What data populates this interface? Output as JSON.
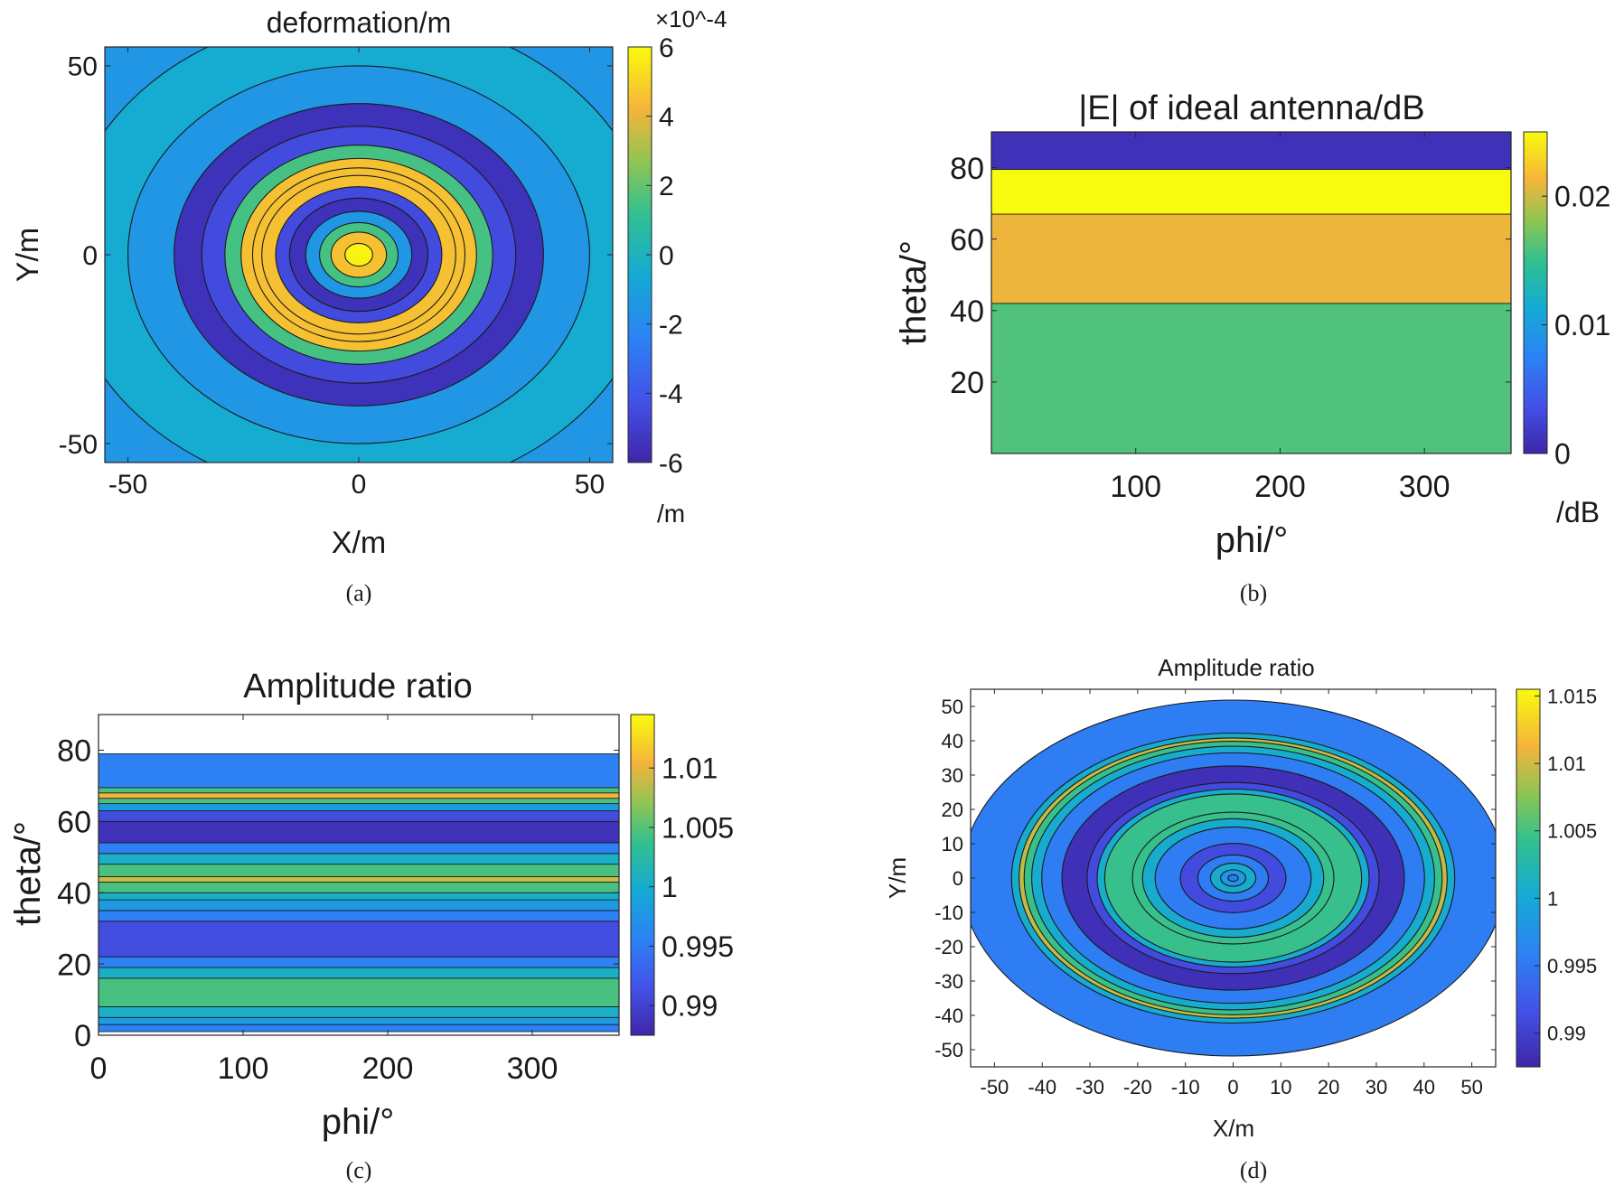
{
  "chart_data": [
    {
      "type": "heatmap",
      "subtype": "filled-contour",
      "panel": "(a)",
      "title": "deformation/m",
      "xlabel": "X/m",
      "ylabel": "Y/m",
      "xlim": [
        -55,
        55
      ],
      "ylim": [
        -55,
        55
      ],
      "xticks": [
        "-50",
        "0",
        "50"
      ],
      "yticks": [
        "50",
        "0",
        "-50"
      ],
      "colorbar": {
        "range": [
          -6,
          6
        ],
        "ticks": [
          "6",
          "4",
          "2",
          "0",
          "-2",
          "-4",
          "-6"
        ],
        "exponent": "×10^-4",
        "unit": "/m"
      },
      "rings": [
        {
          "radius": 80,
          "level": -1.5
        },
        {
          "radius": 64,
          "level": -0.5
        },
        {
          "radius": 50,
          "level": -1.5
        },
        {
          "radius": 40,
          "level": -5.5
        },
        {
          "radius": 34,
          "level": -4.5
        },
        {
          "radius": 29,
          "level": 1.5
        },
        {
          "radius": 25.5,
          "level": 4.5
        },
        {
          "radius": 23,
          "level": 4.5
        },
        {
          "radius": 21,
          "level": 4.5
        },
        {
          "radius": 18,
          "level": -4.5
        },
        {
          "radius": 15,
          "level": -5.5
        },
        {
          "radius": 11.5,
          "level": -1.5
        },
        {
          "radius": 8.5,
          "level": 1.5
        },
        {
          "radius": 6,
          "level": 4.5
        },
        {
          "radius": 3,
          "level": 5.8
        }
      ]
    },
    {
      "type": "heatmap",
      "subtype": "filled-contour",
      "panel": "(b)",
      "title": "|E| of ideal antenna/dB",
      "xlabel": "phi/°",
      "ylabel": "theta/°",
      "xlim": [
        0,
        360
      ],
      "ylim": [
        0,
        90
      ],
      "xticks": [
        "100",
        "200",
        "300"
      ],
      "yticks": [
        "80",
        "60",
        "40",
        "20"
      ],
      "colorbar": {
        "range": [
          0,
          0.025
        ],
        "ticks": [
          "0.02",
          "0.01",
          "0"
        ],
        "unit": "/dB"
      },
      "bands": [
        {
          "from": 0,
          "to": 42,
          "level": 0.016
        },
        {
          "from": 42,
          "to": 67,
          "level": 0.021
        },
        {
          "from": 67,
          "to": 79.5,
          "level": 0.025
        },
        {
          "from": 79.5,
          "to": 90,
          "level": 0.001
        }
      ]
    },
    {
      "type": "heatmap",
      "subtype": "filled-contour",
      "panel": "(c)",
      "title": "Amplitude ratio",
      "xlabel": "phi/°",
      "ylabel": "theta/°",
      "xlim": [
        0,
        360
      ],
      "ylim": [
        0,
        90
      ],
      "xticks": [
        "0",
        "100",
        "200",
        "300"
      ],
      "yticks": [
        "80",
        "60",
        "40",
        "20",
        "0"
      ],
      "colorbar": {
        "range": [
          0.9875,
          1.0145
        ],
        "ticks": [
          "1.01",
          "1.005",
          "1",
          "0.995",
          "0.99"
        ]
      },
      "bands": [
        {
          "from": 1,
          "to": 3,
          "level": 0.9955
        },
        {
          "from": 3,
          "to": 5,
          "level": 0.998
        },
        {
          "from": 5,
          "to": 8,
          "level": 1.0005
        },
        {
          "from": 8,
          "to": 16,
          "level": 1.0045
        },
        {
          "from": 16,
          "to": 19,
          "level": 1.0005
        },
        {
          "from": 19,
          "to": 22,
          "level": 0.9955
        },
        {
          "from": 22,
          "to": 32,
          "level": 0.991
        },
        {
          "from": 32,
          "to": 35,
          "level": 0.9955
        },
        {
          "from": 35,
          "to": 38,
          "level": 0.998
        },
        {
          "from": 38,
          "to": 40,
          "level": 1.0005
        },
        {
          "from": 40,
          "to": 43,
          "level": 1.0045
        },
        {
          "from": 43,
          "to": 44.5,
          "level": 1.009
        },
        {
          "from": 44.5,
          "to": 48,
          "level": 1.0045
        },
        {
          "from": 48,
          "to": 51,
          "level": 1.0005
        },
        {
          "from": 51,
          "to": 54,
          "level": 0.9955
        },
        {
          "from": 54,
          "to": 60,
          "level": 0.9885
        },
        {
          "from": 60,
          "to": 63,
          "level": 0.991
        },
        {
          "from": 63,
          "to": 65,
          "level": 0.998
        },
        {
          "from": 65,
          "to": 66.5,
          "level": 1.0045
        },
        {
          "from": 66.5,
          "to": 68,
          "level": 1.0105
        },
        {
          "from": 68,
          "to": 69.5,
          "level": 1.0045
        },
        {
          "from": 69.5,
          "to": 79,
          "level": 0.9955
        }
      ]
    },
    {
      "type": "heatmap",
      "subtype": "filled-contour",
      "panel": "(d)",
      "title": "Amplitude ratio",
      "xlabel": "X/m",
      "ylabel": "Y/m",
      "xlim": [
        -55,
        55
      ],
      "ylim": [
        -55,
        55
      ],
      "xticks": [
        "-50",
        "-40",
        "-30",
        "-20",
        "-10",
        "0",
        "10",
        "20",
        "30",
        "40",
        "50"
      ],
      "yticks": [
        "50",
        "40",
        "30",
        "20",
        "10",
        "0",
        "-10",
        "-20",
        "-30",
        "-40",
        "-50"
      ],
      "colorbar": {
        "range": [
          0.9875,
          1.0155
        ],
        "ticks": [
          "1.015",
          "1.01",
          "1.005",
          "1",
          "0.995",
          "0.99"
        ]
      },
      "rings": [
        {
          "radius": 54,
          "level": 0.9955
        },
        {
          "radius": 44,
          "level": 1.0005
        },
        {
          "radius": 42.5,
          "level": 1.0095
        },
        {
          "radius": 41.5,
          "level": 1.0045
        },
        {
          "radius": 40,
          "level": 1.0005
        },
        {
          "radius": 38,
          "level": 0.9955
        },
        {
          "radius": 34,
          "level": 0.9885
        },
        {
          "radius": 29,
          "level": 0.991
        },
        {
          "radius": 27,
          "level": 1.0005
        },
        {
          "radius": 25.5,
          "level": 1.0045
        },
        {
          "radius": 20,
          "level": 1.0045
        },
        {
          "radius": 18,
          "level": 1.0005
        },
        {
          "radius": 15.5,
          "level": 0.9955
        },
        {
          "radius": 10.5,
          "level": 0.991
        },
        {
          "radius": 7,
          "level": 0.9955
        },
        {
          "radius": 4.5,
          "level": 1.0005
        },
        {
          "radius": 2.5,
          "level": 0.998
        },
        {
          "radius": 1,
          "level": 0.9955
        }
      ]
    }
  ],
  "captions": [
    "(a)",
    "(b)",
    "(c)",
    "(d)"
  ]
}
